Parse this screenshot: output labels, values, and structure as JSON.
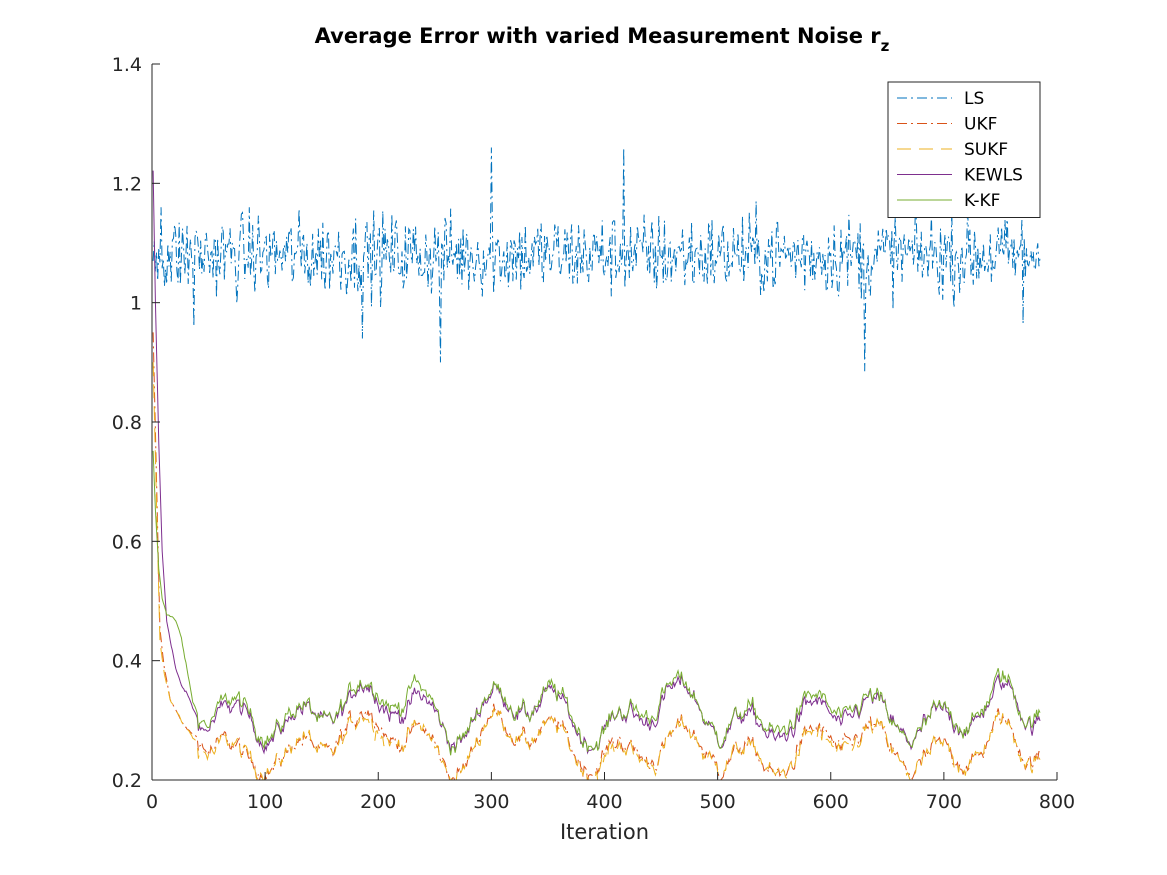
{
  "chart_data": {
    "type": "line",
    "title": "Average Error with varied Measurement Noise r",
    "title_subscript": "z",
    "xlabel": "Iteration",
    "ylabel": "",
    "xlim": [
      0,
      800
    ],
    "ylim": [
      0.2,
      1.4
    ],
    "xticks": [
      "0",
      "100",
      "200",
      "300",
      "400",
      "500",
      "600",
      "700",
      "800"
    ],
    "yticks": [
      "0.2",
      "0.4",
      "0.6",
      "0.8",
      "1",
      "1.2",
      "1.4"
    ],
    "grid": false,
    "legend_position": "top-right",
    "n_points": 785,
    "series": [
      {
        "name": "LS",
        "color": "#0072BD",
        "dash": "dash-dot",
        "model": "noisy-constant",
        "mean": 1.08,
        "noise_amplitude": 0.05,
        "min": 0.885,
        "max": 1.26,
        "anchors": [
          [
            1,
            1.07
          ],
          [
            8,
            1.16
          ],
          [
            37,
            0.96
          ],
          [
            186,
            0.94
          ],
          [
            255,
            0.9
          ],
          [
            300,
            1.26
          ],
          [
            417,
            1.26
          ],
          [
            630,
            0.885
          ],
          [
            770,
            0.965
          ]
        ]
      },
      {
        "name": "UKF",
        "color": "#D95319",
        "dash": "dash-dot",
        "model": "decay-then-noisy",
        "x": [
          0,
          3,
          6,
          10,
          15,
          20,
          25,
          30,
          40,
          50,
          60,
          80,
          100,
          150,
          200,
          230,
          260,
          300,
          350,
          400,
          450,
          500,
          550,
          600,
          650,
          700,
          750,
          770,
          785
        ],
        "y": [
          0.95,
          0.7,
          0.45,
          0.38,
          0.33,
          0.31,
          0.29,
          0.28,
          0.27,
          0.25,
          0.25,
          0.23,
          0.26,
          0.26,
          0.28,
          0.29,
          0.24,
          0.28,
          0.26,
          0.26,
          0.25,
          0.24,
          0.25,
          0.26,
          0.25,
          0.25,
          0.26,
          0.23,
          0.25
        ]
      },
      {
        "name": "SUKF",
        "color": "#EDB120",
        "dash": "long-dash",
        "model": "decay-then-noisy",
        "x": [
          0,
          3,
          6,
          10,
          15,
          20,
          25,
          30,
          40,
          50,
          60,
          80,
          100,
          150,
          200,
          230,
          260,
          300,
          350,
          400,
          450,
          500,
          550,
          600,
          650,
          700,
          750,
          770,
          785
        ],
        "y": [
          0.9,
          0.66,
          0.43,
          0.37,
          0.33,
          0.31,
          0.29,
          0.28,
          0.26,
          0.25,
          0.24,
          0.23,
          0.26,
          0.26,
          0.27,
          0.29,
          0.24,
          0.28,
          0.26,
          0.25,
          0.25,
          0.24,
          0.25,
          0.25,
          0.25,
          0.25,
          0.26,
          0.23,
          0.24
        ]
      },
      {
        "name": "KEWLS",
        "color": "#7E2F8E",
        "dash": "solid",
        "model": "decay-then-noisy",
        "x": [
          0,
          2,
          5,
          8,
          12,
          16,
          20,
          25,
          30,
          35,
          40,
          45,
          50,
          60,
          80,
          100,
          150,
          200,
          230,
          260,
          300,
          350,
          400,
          450,
          500,
          550,
          600,
          650,
          700,
          750,
          770,
          785
        ],
        "y": [
          1.22,
          1.0,
          0.76,
          0.58,
          0.46,
          0.42,
          0.38,
          0.35,
          0.34,
          0.32,
          0.3,
          0.29,
          0.29,
          0.3,
          0.3,
          0.31,
          0.31,
          0.32,
          0.34,
          0.3,
          0.32,
          0.31,
          0.3,
          0.33,
          0.29,
          0.31,
          0.3,
          0.3,
          0.31,
          0.32,
          0.3,
          0.31
        ]
      },
      {
        "name": "K-KF",
        "color": "#77AC30",
        "dash": "solid",
        "model": "decay-then-noisy",
        "x": [
          0,
          2,
          5,
          8,
          12,
          16,
          20,
          25,
          30,
          35,
          40,
          45,
          50,
          60,
          80,
          100,
          150,
          200,
          230,
          260,
          300,
          350,
          400,
          450,
          500,
          550,
          600,
          650,
          700,
          750,
          770,
          785
        ],
        "y": [
          0.75,
          0.65,
          0.55,
          0.5,
          0.47,
          0.47,
          0.46,
          0.43,
          0.38,
          0.33,
          0.31,
          0.3,
          0.3,
          0.31,
          0.31,
          0.32,
          0.31,
          0.33,
          0.36,
          0.3,
          0.32,
          0.32,
          0.3,
          0.34,
          0.29,
          0.32,
          0.31,
          0.3,
          0.31,
          0.33,
          0.3,
          0.32
        ]
      }
    ]
  }
}
